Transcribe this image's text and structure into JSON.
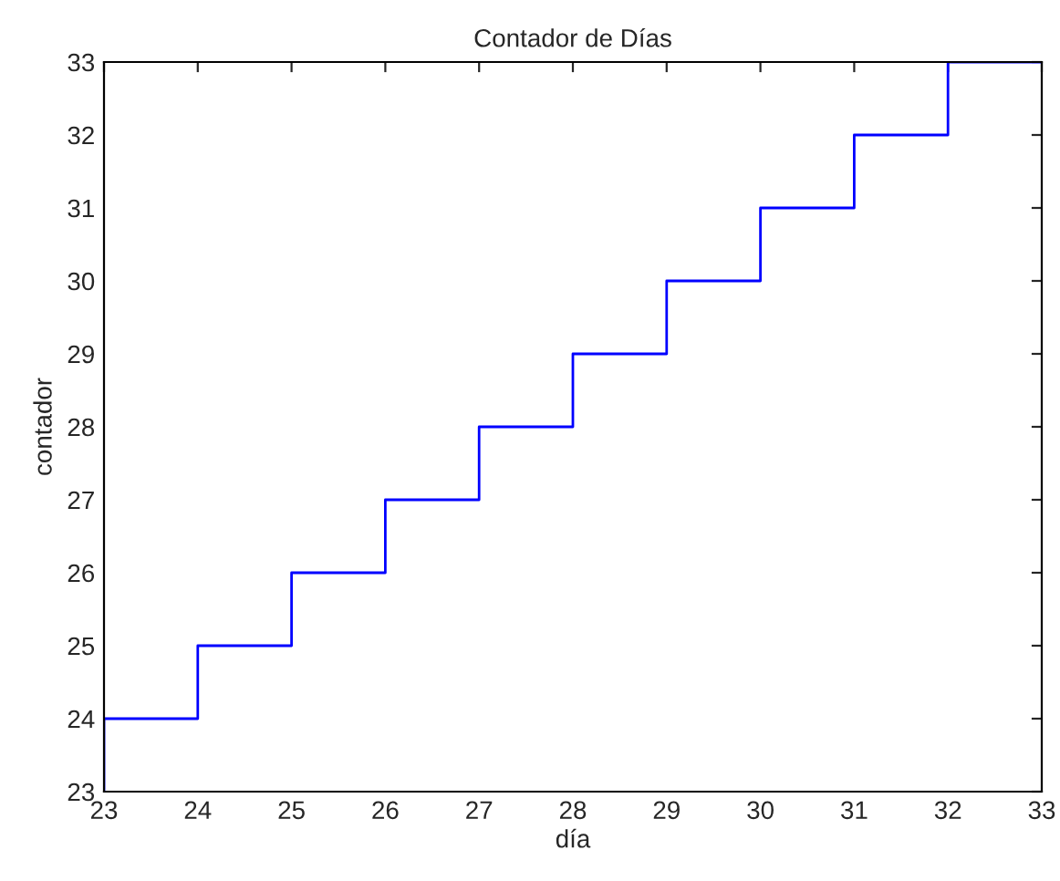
{
  "chart_data": {
    "type": "line",
    "title": "Contador de Días",
    "xlabel": "día",
    "ylabel": "contador",
    "series": [
      {
        "color": "#0000ff",
        "x": [
          23,
          23,
          24,
          24,
          25,
          25,
          26,
          26,
          27,
          27,
          28,
          28,
          29,
          29,
          30,
          30,
          31,
          31,
          32,
          32,
          33
        ],
        "values": [
          23,
          24,
          24,
          25,
          25,
          26,
          26,
          27,
          27,
          28,
          28,
          29,
          29,
          30,
          30,
          31,
          31,
          32,
          32,
          33,
          33
        ]
      }
    ],
    "xlim": [
      23,
      33
    ],
    "xticks": [
      23,
      24,
      25,
      26,
      27,
      28,
      29,
      30,
      31,
      32,
      33
    ],
    "ylim": [
      23,
      33
    ],
    "yticks": [
      23,
      24,
      25,
      26,
      27,
      28,
      29,
      30,
      31,
      32,
      33
    ],
    "grid": false,
    "legend": false
  }
}
